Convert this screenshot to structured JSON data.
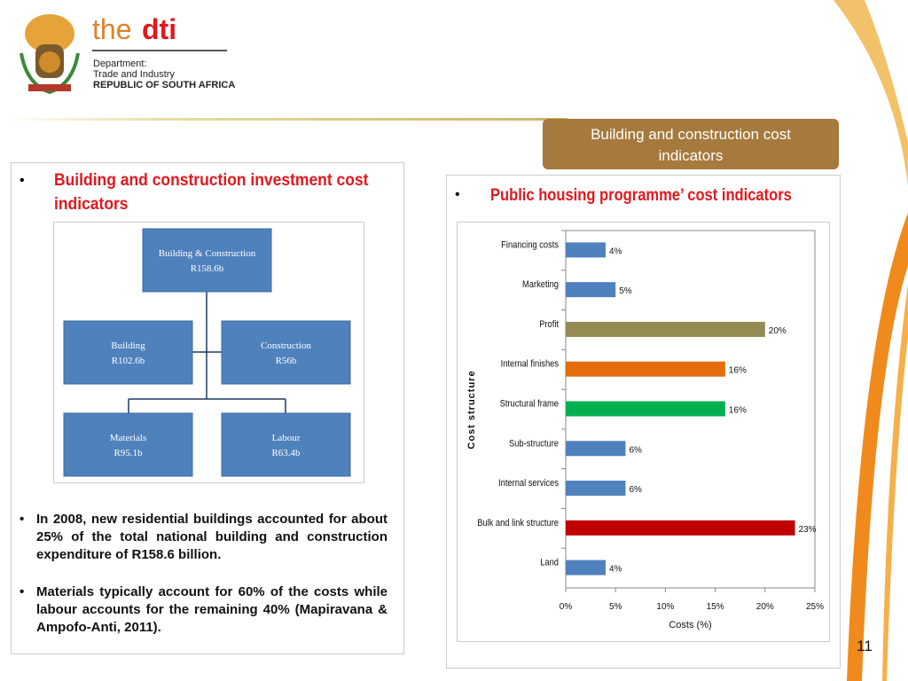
{
  "header": {
    "brand_plain": "the",
    "brand_bold": "dti",
    "department_lines": [
      "Department:",
      "Trade and Industry",
      "REPUBLIC OF SOUTH AFRICA"
    ]
  },
  "slide_title": "Building and construction cost indicators",
  "left_panel": {
    "heading": "Building and construction investment cost indicators",
    "tree": {
      "nodes": [
        {
          "label": "Building & Construction",
          "value": "R158.6b"
        },
        {
          "label": "Building",
          "value": "R102.6b"
        },
        {
          "label": "Construction",
          "value": "R56b"
        },
        {
          "label": "Materials",
          "value": "R95.1b"
        },
        {
          "label": "Labour",
          "value": "R63.4b"
        }
      ]
    },
    "bullets": [
      "In 2008, new residential buildings accounted for about 25% of the total national building and construction expenditure of R158.6 billion.",
      "Materials typically account for 60% of the costs while labour accounts for the remaining 40% (Mapiravana & Ampofo-Anti, 2011)."
    ]
  },
  "right_panel": {
    "heading": "Public housing programme’ cost indicators"
  },
  "chart_data": {
    "type": "bar",
    "orientation": "horizontal",
    "categories": [
      "Financing costs",
      "Marketing",
      "Profit",
      "Internal finishes",
      "Structural frame",
      "Sub-structure",
      "Internal services",
      "Bulk and link structure",
      "Land"
    ],
    "values": [
      4,
      5,
      20,
      16,
      16,
      6,
      6,
      23,
      4
    ],
    "value_labels": [
      "4%",
      "5%",
      "20%",
      "16%",
      "16%",
      "6%",
      "6%",
      "23%",
      "4%"
    ],
    "colors": [
      "#4f81bd",
      "#4f81bd",
      "#948a54",
      "#e46c0a",
      "#00b050",
      "#4f81bd",
      "#4f81bd",
      "#c00000",
      "#4f81bd"
    ],
    "xlabel": "Costs (%)",
    "ylabel": "Cost structure",
    "xlim": [
      0,
      25
    ],
    "xticks": [
      {
        "value": 0,
        "label": "0%"
      },
      {
        "value": 5,
        "label": "5%"
      },
      {
        "value": 10,
        "label": "10%"
      },
      {
        "value": 15,
        "label": "15%"
      },
      {
        "value": 20,
        "label": "20%"
      },
      {
        "value": 25,
        "label": "25%"
      }
    ]
  },
  "page_number": "11"
}
